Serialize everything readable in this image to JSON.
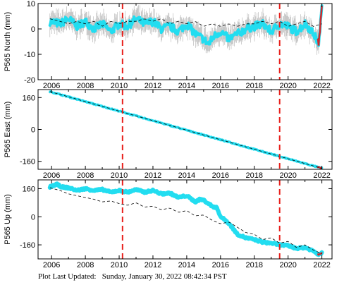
{
  "footer": {
    "label": "Plot Last Updated:",
    "datetime": "Sunday, January 30, 2022 08:42:34 PST"
  },
  "colors": {
    "data": "#22ddf0",
    "error_bars": "#b0b0b0",
    "model": "#000000",
    "events": "#e8201c",
    "recent": "#d0282c"
  },
  "chart_data": [
    {
      "type": "scatter",
      "ylabel": "P565 North (mm)",
      "xlim": [
        2005.2,
        2022.6
      ],
      "ylim": [
        -20,
        10
      ],
      "yticks": [
        -20,
        -10,
        0,
        10
      ],
      "xticks": [
        2006,
        2008,
        2010,
        2012,
        2014,
        2016,
        2018,
        2020,
        2022
      ],
      "event_lines_x": [
        2010.2,
        2019.5
      ],
      "series": [
        {
          "name": "",
          "x": [
            2005.9,
            2006.5,
            2007.0,
            2007.5,
            2008.0,
            2008.5,
            2009.0,
            2009.5,
            2010.0,
            2010.5,
            2011.0,
            2011.5,
            2012.0,
            2012.5,
            2013.0,
            2013.5,
            2014.0,
            2014.5,
            2015.0,
            2015.3,
            2015.6,
            2016.0,
            2016.5,
            2017.0,
            2017.5,
            2018.0,
            2018.5,
            2019.0,
            2019.5,
            2020.0,
            2020.5,
            2021.0,
            2021.3,
            2021.6,
            2021.8,
            2022.0
          ],
          "values": [
            3,
            2,
            4,
            1,
            3,
            0,
            2,
            -1,
            2,
            1,
            4,
            2,
            3,
            0,
            1,
            -1,
            2,
            -2,
            -4,
            -6,
            -3,
            -1,
            -4,
            -2,
            0,
            1,
            2,
            -1,
            2,
            1,
            -1,
            2,
            0,
            -3,
            -6,
            8
          ]
        },
        {
          "name": "",
          "x": [
            2005.9,
            2006.5,
            2007.0,
            2007.5,
            2008.0,
            2008.5,
            2009.0,
            2009.5,
            2010.0,
            2010.5,
            2011.0,
            2011.5,
            2012.0,
            2012.5,
            2013.0,
            2013.5,
            2014.0,
            2014.5,
            2015.0,
            2015.5,
            2016.0,
            2016.5,
            2017.0,
            2017.5,
            2018.0,
            2018.5,
            2019.0,
            2019.5,
            2020.0,
            2020.5,
            2021.0,
            2021.5,
            2022.0
          ],
          "values": [
            4,
            3,
            2,
            3,
            2,
            3,
            1,
            3,
            2,
            3,
            3,
            4,
            3,
            4,
            2,
            3,
            2,
            3,
            1,
            2,
            1,
            2,
            1,
            2,
            2,
            3,
            2,
            3,
            1,
            2,
            3,
            1,
            2
          ]
        }
      ]
    },
    {
      "type": "scatter",
      "ylabel": "P565 East (mm)",
      "xlim": [
        2005.2,
        2022.6
      ],
      "ylim": [
        -200,
        200
      ],
      "yticks": [
        -160,
        0,
        160
      ],
      "xticks": [
        2006,
        2008,
        2010,
        2012,
        2014,
        2016,
        2018,
        2020,
        2022
      ],
      "event_lines_x": [
        2010.2,
        2019.5
      ],
      "series": [
        {
          "name": "",
          "x": [
            2005.9,
            2022.0
          ],
          "values": [
            190,
            -195
          ]
        },
        {
          "name": "",
          "x": [
            2005.9,
            2022.0
          ],
          "values": [
            190,
            -195
          ]
        }
      ]
    },
    {
      "type": "scatter",
      "ylabel": "P565 Up (mm)",
      "xlim": [
        2005.2,
        2022.6
      ],
      "ylim": [
        -240,
        210
      ],
      "yticks": [
        -160,
        0,
        160
      ],
      "xticks": [
        2006,
        2008,
        2010,
        2012,
        2014,
        2016,
        2018,
        2020,
        2022
      ],
      "event_lines_x": [
        2010.2,
        2019.5
      ],
      "series": [
        {
          "name": "",
          "x": [
            2005.9,
            2006.3,
            2006.6,
            2007.0,
            2007.5,
            2008.0,
            2008.5,
            2009.0,
            2009.5,
            2010.0,
            2010.5,
            2011.0,
            2011.5,
            2012.0,
            2012.5,
            2013.0,
            2013.5,
            2014.0,
            2014.5,
            2014.8,
            2015.0,
            2015.5,
            2015.8,
            2016.0,
            2016.3,
            2016.6,
            2017.0,
            2017.5,
            2018.0,
            2018.5,
            2019.0,
            2019.5,
            2020.0,
            2020.5,
            2021.0,
            2021.5,
            2021.8,
            2022.0
          ],
          "values": [
            170,
            185,
            170,
            165,
            150,
            160,
            150,
            155,
            140,
            150,
            140,
            155,
            140,
            150,
            130,
            135,
            110,
            120,
            85,
            100,
            95,
            60,
            50,
            0,
            -20,
            -50,
            -100,
            -120,
            -130,
            -145,
            -150,
            -160,
            -165,
            -180,
            -175,
            -195,
            -215,
            -205
          ]
        },
        {
          "name": "",
          "x": [
            2005.9,
            2006.5,
            2007.0,
            2007.5,
            2008.0,
            2008.5,
            2009.0,
            2009.5,
            2010.0,
            2010.5,
            2011.0,
            2011.5,
            2012.0,
            2012.5,
            2013.0,
            2013.5,
            2014.0,
            2014.5,
            2015.0,
            2015.5,
            2016.0,
            2016.5,
            2017.0,
            2017.5,
            2018.0,
            2018.5,
            2019.0,
            2019.5,
            2020.0,
            2020.5,
            2021.0,
            2021.5,
            2022.0
          ],
          "values": [
            165,
            150,
            130,
            120,
            110,
            100,
            85,
            90,
            75,
            65,
            80,
            55,
            60,
            40,
            50,
            25,
            35,
            5,
            10,
            -20,
            -40,
            -30,
            -60,
            -90,
            -100,
            -130,
            -120,
            -150,
            -140,
            -175,
            -160,
            -190,
            -210
          ]
        }
      ]
    }
  ]
}
